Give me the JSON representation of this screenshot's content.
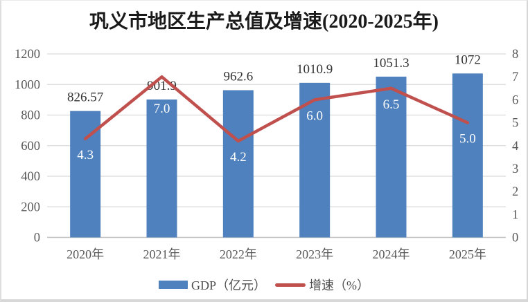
{
  "chart_data": {
    "type": "bar+line combo",
    "title": "巩义市地区生产总值及增速(2020-2025年)",
    "categories": [
      "2020年",
      "2021年",
      "2022年",
      "2023年",
      "2024年",
      "2025年"
    ],
    "series": [
      {
        "name": "GDP（亿元）",
        "type": "bar",
        "axis": "left",
        "values": [
          826.57,
          901.9,
          962.6,
          1010.9,
          1051.3,
          1072
        ],
        "labels": [
          "826.57",
          "901.9",
          "962.6",
          "1010.9",
          "1051.3",
          "1072"
        ],
        "color": "#4E81BD",
        "label_color": "#333333"
      },
      {
        "name": "增速（%）",
        "type": "line",
        "axis": "right",
        "values": [
          4.3,
          7.0,
          4.2,
          6.0,
          6.5,
          5.0
        ],
        "labels": [
          "4.3",
          "7.0",
          "4.2",
          "6.0",
          "6.5",
          "5.0"
        ],
        "color": "#C0504D",
        "label_color": "#FFFFFF"
      }
    ],
    "left_axis": {
      "min": 0,
      "max": 1200,
      "step": 200,
      "ticks": [
        "0",
        "200",
        "400",
        "600",
        "800",
        "1000",
        "1200"
      ]
    },
    "right_axis": {
      "min": 0,
      "max": 8,
      "step": 1,
      "ticks": [
        "0",
        "1",
        "2",
        "3",
        "4",
        "5",
        "6",
        "7",
        "8"
      ]
    },
    "grid": true,
    "grid_color": "#D9D9D9",
    "axis_line_color": "#BFBFBF",
    "axis_label_color": "#595959",
    "legend_position": "bottom"
  }
}
